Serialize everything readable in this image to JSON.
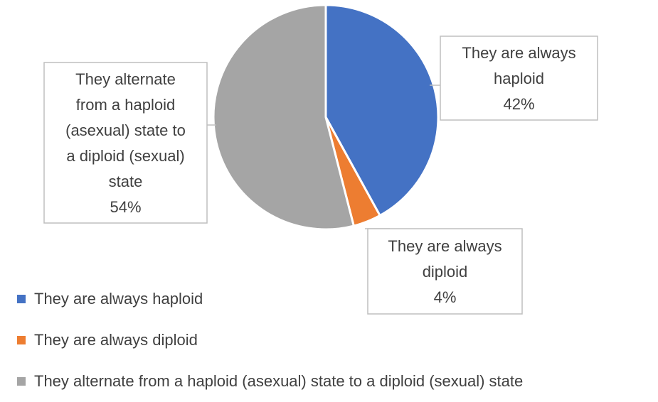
{
  "chart_data": {
    "type": "pie",
    "categories": [
      "They are always haploid",
      "They are always diploid",
      "They alternate from a haploid (asexual) state to a diploid (sexual) state"
    ],
    "values": [
      42,
      4,
      54
    ],
    "colors": [
      "#4472c4",
      "#ed7d31",
      "#a5a5a5"
    ],
    "data_labels": [
      {
        "lines": [
          "They are always",
          "haploid",
          "42%"
        ]
      },
      {
        "lines": [
          "They are always",
          "diploid",
          "4%"
        ]
      },
      {
        "lines": [
          "They alternate",
          "from a haploid",
          "(asexual) state to",
          "a diploid (sexual)",
          "state",
          "54%"
        ]
      }
    ],
    "legend_position": "bottom-left"
  }
}
